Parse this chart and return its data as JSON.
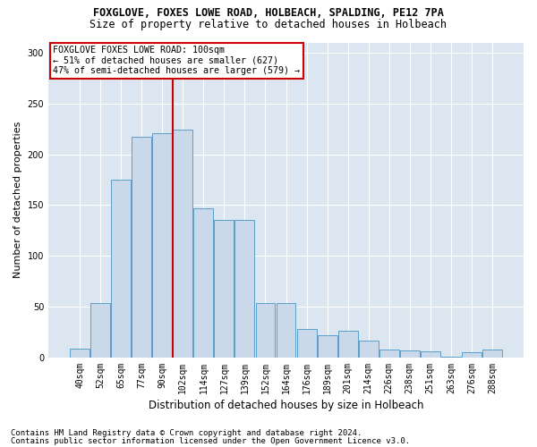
{
  "title1": "FOXGLOVE, FOXES LOWE ROAD, HOLBEACH, SPALDING, PE12 7PA",
  "title2": "Size of property relative to detached houses in Holbeach",
  "xlabel": "Distribution of detached houses by size in Holbeach",
  "ylabel": "Number of detached properties",
  "footer1": "Contains HM Land Registry data © Crown copyright and database right 2024.",
  "footer2": "Contains public sector information licensed under the Open Government Licence v3.0.",
  "bar_labels": [
    "40sqm",
    "52sqm",
    "65sqm",
    "77sqm",
    "90sqm",
    "102sqm",
    "114sqm",
    "127sqm",
    "139sqm",
    "152sqm",
    "164sqm",
    "176sqm",
    "189sqm",
    "201sqm",
    "214sqm",
    "226sqm",
    "238sqm",
    "251sqm",
    "263sqm",
    "276sqm",
    "288sqm"
  ],
  "bar_values": [
    9,
    54,
    175,
    217,
    221,
    224,
    147,
    135,
    135,
    54,
    54,
    28,
    22,
    26,
    17,
    8,
    7,
    6,
    1,
    5,
    8
  ],
  "bar_color": "#c9d9ea",
  "bar_edge_color": "#5a9fc8",
  "vline_index": 5,
  "vline_color": "#cc0000",
  "annotation_title": "FOXGLOVE FOXES LOWE ROAD: 100sqm",
  "annotation_line2": "← 51% of detached houses are smaller (627)",
  "annotation_line3": "47% of semi-detached houses are larger (579) →",
  "annotation_box_facecolor": "#ffffff",
  "annotation_border_color": "#cc0000",
  "ylim": [
    0,
    310
  ],
  "yticks": [
    0,
    50,
    100,
    150,
    200,
    250,
    300
  ],
  "background_color": "#dce6f0",
  "grid_color": "#ffffff",
  "title1_fontsize": 8.5,
  "title2_fontsize": 8.5,
  "xlabel_fontsize": 8.5,
  "ylabel_fontsize": 8,
  "tick_fontsize": 7,
  "footer_fontsize": 6.5
}
